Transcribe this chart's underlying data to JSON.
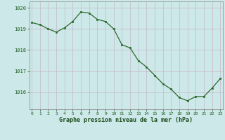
{
  "x": [
    0,
    1,
    2,
    3,
    4,
    5,
    6,
    7,
    8,
    9,
    10,
    11,
    12,
    13,
    14,
    15,
    16,
    17,
    18,
    19,
    20,
    21,
    22,
    23
  ],
  "y": [
    1019.3,
    1019.2,
    1019.0,
    1018.85,
    1019.05,
    1019.35,
    1019.8,
    1019.75,
    1019.45,
    1019.35,
    1019.0,
    1018.25,
    1018.1,
    1017.5,
    1017.2,
    1016.8,
    1016.4,
    1016.15,
    1015.75,
    1015.6,
    1015.8,
    1015.8,
    1016.2,
    1016.65
  ],
  "line_color": "#2d6a2d",
  "marker_color": "#2d6a2d",
  "bg_color": "#cce8e8",
  "grid_color_v": "#c8b8c8",
  "grid_color_h": "#c8b8c8",
  "xlabel": "Graphe pression niveau de la mer (hPa)",
  "xlabel_color": "#1a4a1a",
  "tick_color": "#1a5a1a",
  "ylim_min": 1015.2,
  "ylim_max": 1020.3,
  "yticks": [
    1016,
    1017,
    1018,
    1019,
    1020
  ],
  "xticks": [
    0,
    1,
    2,
    3,
    4,
    5,
    6,
    7,
    8,
    9,
    10,
    11,
    12,
    13,
    14,
    15,
    16,
    17,
    18,
    19,
    20,
    21,
    22,
    23
  ],
  "xlim_min": -0.3,
  "xlim_max": 23.3
}
